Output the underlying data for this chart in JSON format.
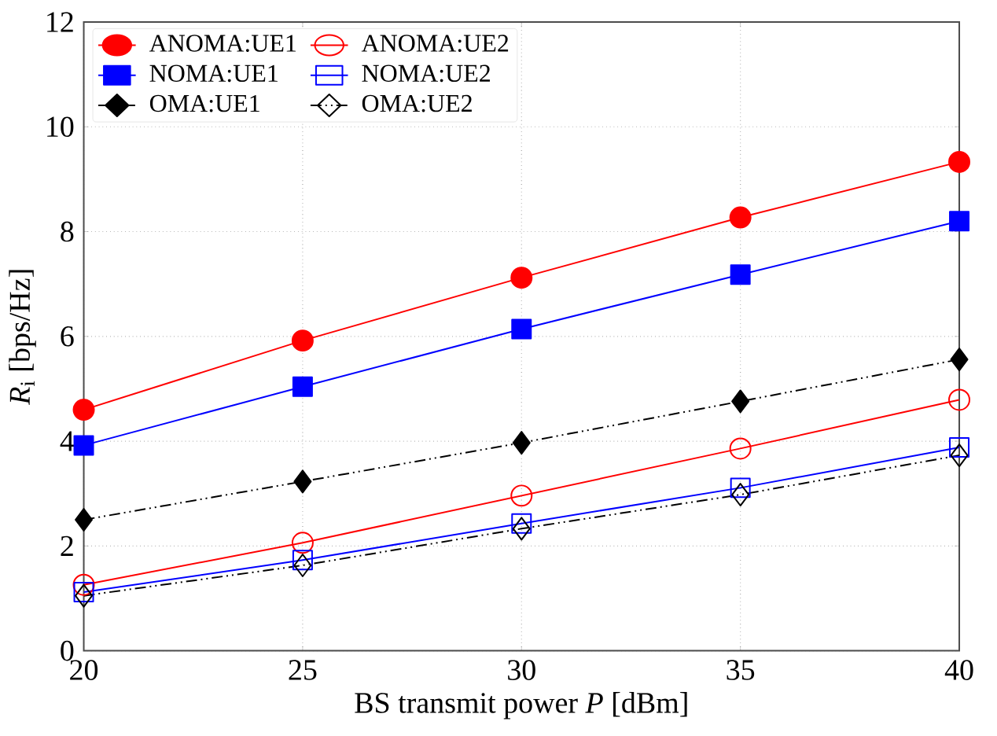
{
  "chart_data": {
    "type": "line",
    "xlabel": "BS transmit power *P* [dBm]",
    "ylabel": "*R*$_{i}$ [bps/Hz]",
    "x": [
      20,
      25,
      30,
      35,
      40
    ],
    "xlim": [
      20,
      40
    ],
    "xticks": [
      20,
      25,
      30,
      35,
      40
    ],
    "ylim": [
      0,
      12
    ],
    "yticks": [
      0,
      2,
      4,
      6,
      8,
      10,
      12
    ],
    "grid": true,
    "legend": "top left",
    "series": [
      {
        "name": "ANOMA:UE1",
        "color": "#ff0000",
        "marker": "circle",
        "line_style": "solid",
        "values": [
          4.6,
          5.92,
          7.12,
          8.27,
          9.33
        ]
      },
      {
        "name": "ANOMA:UE2",
        "color": "#ff0000",
        "marker": "circle",
        "line_style": "solid",
        "values": [
          1.26,
          2.06,
          2.96,
          3.86,
          4.79
        ]
      },
      {
        "name": "NOMA:UE1",
        "color": "#0000ff",
        "marker": "square",
        "line_style": "solid",
        "values": [
          3.92,
          5.04,
          6.14,
          7.18,
          8.2
        ]
      },
      {
        "name": "NOMA:UE2",
        "color": "#0000ff",
        "marker": "square",
        "line_style": "solid",
        "values": [
          1.12,
          1.73,
          2.43,
          3.11,
          3.88
        ]
      },
      {
        "name": "OMA:UE1",
        "color": "#000000",
        "marker": "diamond",
        "line_style": "dashdot",
        "values": [
          2.5,
          3.23,
          3.97,
          4.76,
          5.56
        ]
      },
      {
        "name": "OMA:UE2",
        "color": "#000000",
        "marker": "diamond",
        "line_style": "dashdot",
        "values": [
          1.05,
          1.63,
          2.33,
          2.98,
          3.73
        ]
      }
    ]
  }
}
